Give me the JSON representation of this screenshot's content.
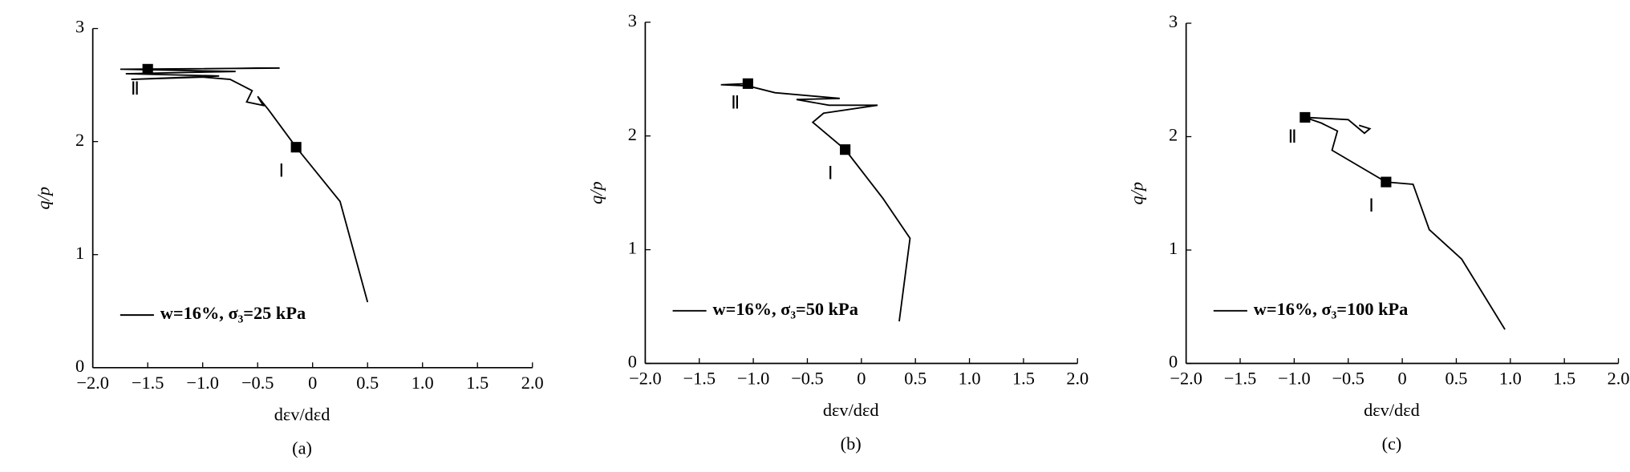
{
  "chart_data": [
    {
      "type": "line",
      "panel_label": "(a)",
      "x_label": "dεv/dεd",
      "y_label": "q/p",
      "xlim": [
        -2,
        2
      ],
      "ylim": [
        0,
        3
      ],
      "xticks": [
        {
          "value": -2,
          "label": "−2.0"
        },
        {
          "value": -1.5,
          "label": "−1.5"
        },
        {
          "value": -1,
          "label": "−1.0"
        },
        {
          "value": -0.5,
          "label": "−0.5"
        },
        0,
        0.5,
        {
          "value": 1,
          "label": "1.0"
        },
        1.5,
        {
          "value": 2,
          "label": "2.0"
        }
      ],
      "yticks": [
        0,
        1,
        2,
        3
      ],
      "series": [
        {
          "name": "w=16%, σ₃=25 kPa",
          "color": "#000000",
          "x": [
            0.5,
            0.25,
            -0.15,
            -0.4,
            -0.5,
            -0.45,
            -0.6,
            -0.55,
            -0.65,
            -0.75,
            -1.0,
            -1.65,
            -0.85,
            -1.7,
            -0.7,
            -1.75,
            -0.3,
            -1.5
          ],
          "values": [
            0.58,
            1.47,
            1.95,
            2.28,
            2.4,
            2.32,
            2.35,
            2.45,
            2.5,
            2.55,
            2.57,
            2.55,
            2.58,
            2.6,
            2.62,
            2.64,
            2.65,
            2.64
          ]
        }
      ],
      "points": [
        {
          "label": "Ⅰ",
          "x": -0.15,
          "y": 1.95
        },
        {
          "label": "Ⅱ",
          "x": -1.5,
          "y": 2.64
        }
      ]
    },
    {
      "type": "line",
      "panel_label": "(b)",
      "x_label": "dεv/dεd",
      "y_label": "q/p",
      "xlim": [
        -2,
        2
      ],
      "ylim": [
        0,
        3
      ],
      "xticks": [
        {
          "value": -2,
          "label": "−2.0"
        },
        {
          "value": -1.5,
          "label": "−1.5"
        },
        {
          "value": -1,
          "label": "−1.0"
        },
        {
          "value": -0.5,
          "label": "−0.5"
        },
        0,
        0.5,
        {
          "value": 1,
          "label": "1.0"
        },
        1.5,
        {
          "value": 2,
          "label": "2.0"
        }
      ],
      "yticks": [
        0,
        1,
        2,
        3
      ],
      "series": [
        {
          "name": "w=16%, σ₃=50 kPa",
          "color": "#000000",
          "x": [
            0.35,
            0.45,
            0.2,
            -0.15,
            -0.45,
            -0.35,
            0.15,
            -0.3,
            -0.6,
            -0.2,
            -0.8,
            -1.05,
            -1.3,
            -1.05
          ],
          "values": [
            0.37,
            1.1,
            1.45,
            1.88,
            2.12,
            2.2,
            2.27,
            2.27,
            2.32,
            2.33,
            2.38,
            2.44,
            2.45,
            2.46
          ]
        }
      ],
      "points": [
        {
          "label": "Ⅰ",
          "x": -0.15,
          "y": 1.88
        },
        {
          "label": "Ⅱ",
          "x": -1.05,
          "y": 2.46
        }
      ]
    },
    {
      "type": "line",
      "panel_label": "(c)",
      "x_label": "dεv/dεd",
      "y_label": "q/p",
      "xlim": [
        -2,
        2
      ],
      "ylim": [
        0,
        3
      ],
      "xticks": [
        {
          "value": -2,
          "label": "−2.0"
        },
        {
          "value": -1.5,
          "label": "−1.5"
        },
        {
          "value": -1,
          "label": "−1.0"
        },
        {
          "value": -0.5,
          "label": "−0.5"
        },
        0,
        0.5,
        {
          "value": 1,
          "label": "1.0"
        },
        1.5,
        {
          "value": 2,
          "label": "2.0"
        }
      ],
      "yticks": [
        0,
        1,
        2,
        3
      ],
      "series": [
        {
          "name": "w=16%, σ₃=100 kPa",
          "color": "#000000",
          "x": [
            0.95,
            0.55,
            0.25,
            0.1,
            -0.15,
            -0.65,
            -0.6,
            -0.75,
            -0.9,
            -0.5,
            -0.35,
            -0.3,
            -0.4
          ],
          "values": [
            0.3,
            0.92,
            1.18,
            1.58,
            1.6,
            1.88,
            2.05,
            2.12,
            2.17,
            2.15,
            2.03,
            2.07,
            2.1
          ]
        }
      ],
      "points": [
        {
          "label": "Ⅰ",
          "x": -0.15,
          "y": 1.6
        },
        {
          "label": "Ⅱ",
          "x": -0.9,
          "y": 2.17
        }
      ]
    }
  ]
}
